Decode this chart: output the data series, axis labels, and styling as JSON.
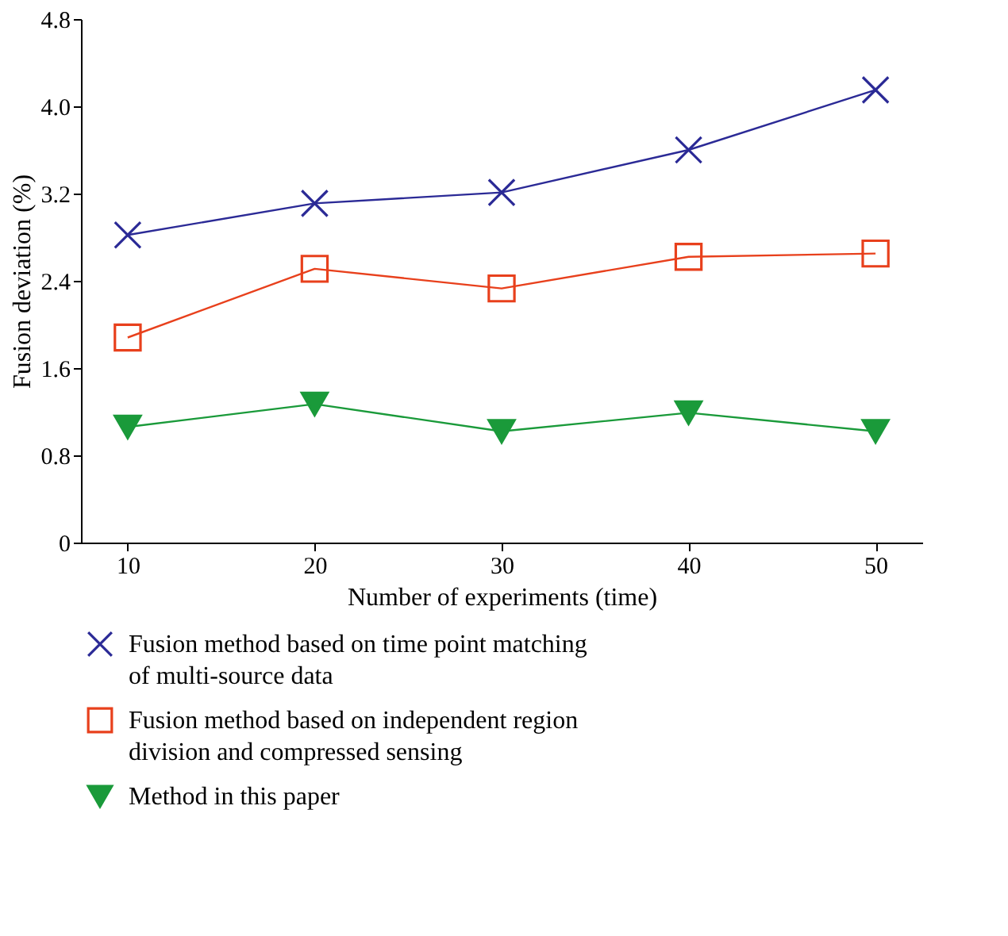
{
  "chart_data": {
    "type": "line",
    "xlabel": "Number of experiments (time)",
    "ylabel": "Fusion deviation (%)",
    "x": [
      10,
      20,
      30,
      40,
      50
    ],
    "xlim": [
      7.5,
      52.5
    ],
    "xticks": [
      10,
      20,
      30,
      40,
      50
    ],
    "ylim": [
      0,
      4.8
    ],
    "yticks": [
      {
        "value": 0,
        "label": "0"
      },
      0.8,
      1.6,
      2.4,
      3.2,
      {
        "value": 4,
        "label": "4.0"
      },
      4.8
    ],
    "grid": false,
    "legend": "bottom",
    "series": [
      {
        "name": "Fusion method based on time point matching of multi-source data",
        "color": "#2b2a96",
        "marker": "cross",
        "values": [
          2.82,
          3.11,
          3.21,
          3.6,
          4.15
        ]
      },
      {
        "name": "Fusion method based on independent region division and compressed sensing",
        "color": "#e8401c",
        "marker": "square",
        "values": [
          1.88,
          2.51,
          2.33,
          2.62,
          2.65
        ]
      },
      {
        "name": "Method in this paper",
        "color": "#1a9a3a",
        "marker": "triangle",
        "values": [
          1.06,
          1.27,
          1.02,
          1.19,
          1.02
        ]
      }
    ]
  }
}
